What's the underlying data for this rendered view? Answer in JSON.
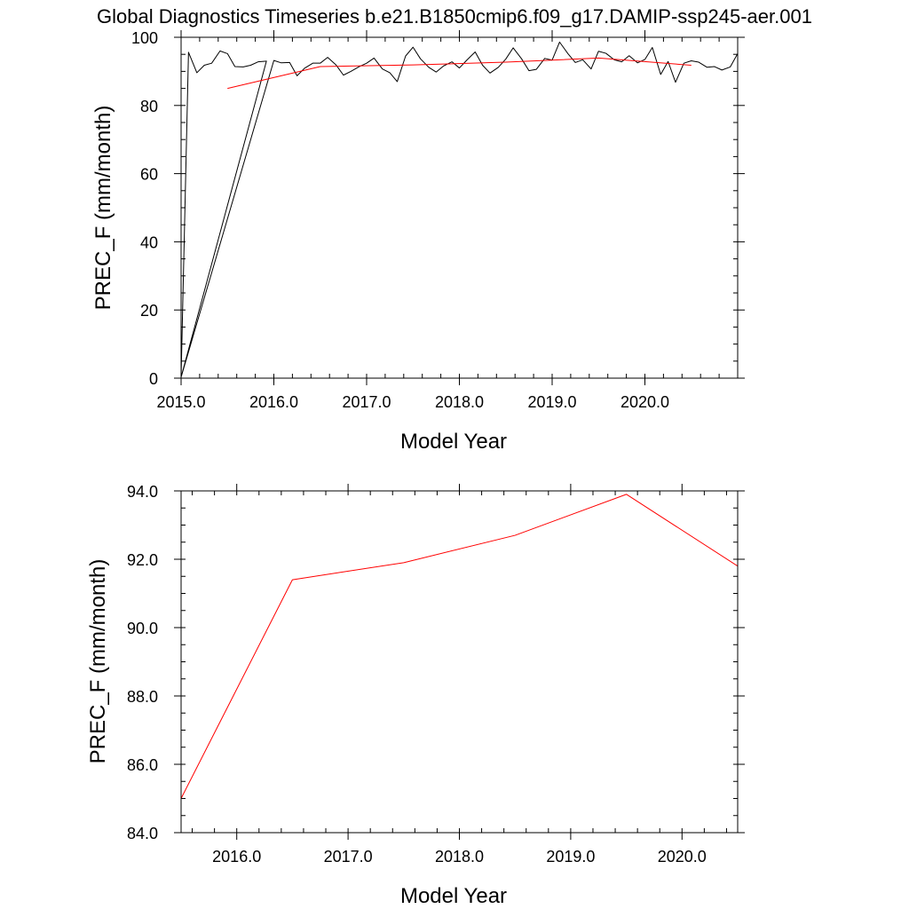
{
  "title": "Global Diagnostics Timeseries b.e21.B1850cmip6.f09_g17.DAMIP-ssp245-aer.001",
  "colors": {
    "monthly": "#000000",
    "annual": "#ff0000"
  },
  "chart_data": [
    {
      "type": "line",
      "xlabel": "Model Year",
      "ylabel": "PREC_F (mm/month)",
      "xlim": [
        2015.0,
        2021.0
      ],
      "ylim": [
        0,
        100
      ],
      "xticks": [
        2015.0,
        2016.0,
        2017.0,
        2018.0,
        2019.0,
        2020.0
      ],
      "xtick_labels": [
        "2015.0",
        "2016.0",
        "2017.0",
        "2018.0",
        "2019.0",
        "2020.0"
      ],
      "yticks": [
        0,
        20,
        40,
        60,
        80,
        100
      ],
      "ytick_labels": [
        "0",
        "20",
        "40",
        "60",
        "80",
        "100"
      ],
      "grid": false,
      "series": [
        {
          "color": "#000000",
          "x": [
            2015.0,
            2015.92,
            2015.83,
            2015.75,
            2015.67,
            2015.58,
            2015.5,
            2015.42,
            2015.33,
            2015.25,
            2015.17,
            2015.08,
            2015.0,
            2016.0,
            2016.08,
            2016.17,
            2016.25,
            2016.33,
            2016.42,
            2016.5,
            2016.58,
            2016.67,
            2016.75,
            2016.83,
            2016.92,
            2017.0,
            2017.08,
            2017.17,
            2017.25,
            2017.33,
            2017.42,
            2017.5,
            2017.58,
            2017.67,
            2017.75,
            2017.83,
            2017.92,
            2018.0,
            2018.08,
            2018.17,
            2018.25,
            2018.33,
            2018.42,
            2018.5,
            2018.58,
            2018.67,
            2018.75,
            2018.83,
            2018.92,
            2019.0,
            2019.08,
            2019.17,
            2019.25,
            2019.33,
            2019.42,
            2019.5,
            2019.58,
            2019.67,
            2019.75,
            2019.83,
            2019.92,
            2020.0,
            2020.08,
            2020.17,
            2020.25,
            2020.33,
            2020.42,
            2020.5,
            2020.58,
            2020.67,
            2020.75,
            2020.83,
            2020.92,
            2021.0
          ],
          "y": [
            0.3,
            93.0,
            92.8,
            91.8,
            91.3,
            91.4,
            95.2,
            96.0,
            92.4,
            91.8,
            89.6,
            95.6,
            0.3,
            93.2,
            92.5,
            92.6,
            88.7,
            90.9,
            92.4,
            92.4,
            94.1,
            91.9,
            88.9,
            90.0,
            91.4,
            92.4,
            93.9,
            90.7,
            89.6,
            87.0,
            94.5,
            97.1,
            93.7,
            91.2,
            89.8,
            91.6,
            92.8,
            91.0,
            93.3,
            95.7,
            91.8,
            89.5,
            91.2,
            93.6,
            96.9,
            93.7,
            90.2,
            90.6,
            93.8,
            93.3,
            98.6,
            95.2,
            92.6,
            93.4,
            90.7,
            95.9,
            95.3,
            93.4,
            92.8,
            94.6,
            92.5,
            93.5,
            97.0,
            89.1,
            92.9,
            86.8,
            92.4,
            93.1,
            92.7,
            91.2,
            91.4,
            90.4,
            91.3,
            95.2
          ]
        },
        {
          "color": "#ff0000",
          "x": [
            2015.5,
            2016.5,
            2017.5,
            2018.5,
            2019.5,
            2020.5
          ],
          "y": [
            85.0,
            91.4,
            91.9,
            92.7,
            93.9,
            91.8
          ]
        }
      ]
    },
    {
      "type": "line",
      "xlabel": "Model Year",
      "ylabel": "PREC_F (mm/month)",
      "xlim": [
        2015.5,
        2020.5
      ],
      "ylim": [
        84.0,
        94.0
      ],
      "xticks": [
        2016.0,
        2017.0,
        2018.0,
        2019.0,
        2020.0
      ],
      "xtick_labels": [
        "2016.0",
        "2017.0",
        "2018.0",
        "2019.0",
        "2020.0"
      ],
      "yticks": [
        84.0,
        86.0,
        88.0,
        90.0,
        92.0,
        94.0
      ],
      "ytick_labels": [
        "84.0",
        "86.0",
        "88.0",
        "90.0",
        "92.0",
        "94.0"
      ],
      "grid": false,
      "series": [
        {
          "color": "#ff0000",
          "x": [
            2015.5,
            2016.5,
            2017.5,
            2018.5,
            2019.5,
            2020.5
          ],
          "y": [
            85.0,
            91.4,
            91.9,
            92.7,
            93.9,
            91.8
          ]
        }
      ]
    }
  ]
}
